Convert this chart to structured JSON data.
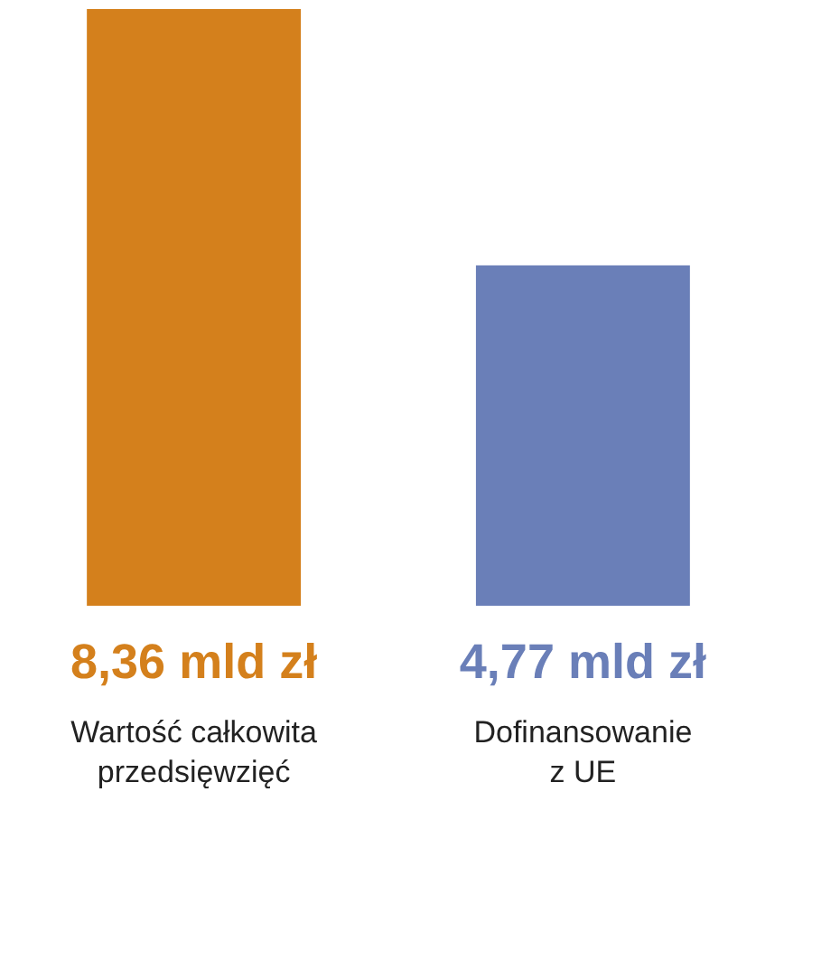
{
  "chart_data": {
    "type": "bar",
    "categories": [
      "Wartość całkowita\nprzedsięwzięć",
      "Dofinansowanie\nz UE"
    ],
    "values": [
      8.36,
      4.77
    ],
    "colors": [
      "#d4801c",
      "#6a7fb8"
    ],
    "value_labels": [
      "8,36 mld zł",
      "4,77 mld zł"
    ],
    "grid": false,
    "tick_labels": "x"
  }
}
